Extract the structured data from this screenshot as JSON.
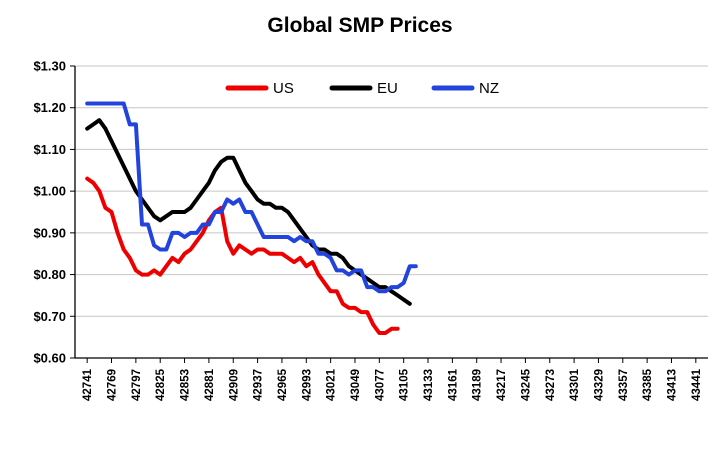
{
  "chart_data": {
    "type": "line",
    "title": "Global SMP Prices",
    "xlabel": "",
    "ylabel": "",
    "ylim": [
      0.6,
      1.3
    ],
    "grid": "horizontal",
    "legend_position": "top",
    "ytick_labels": [
      "$0.60",
      "$0.70",
      "$0.80",
      "$0.90",
      "$1.00",
      "$1.10",
      "$1.20",
      "$1.30"
    ],
    "ytick_values": [
      0.6,
      0.7,
      0.8,
      0.9,
      1.0,
      1.1,
      1.2,
      1.3
    ],
    "xtick_labels": [
      "42741",
      "42769",
      "42797",
      "42825",
      "42853",
      "42881",
      "42909",
      "42937",
      "42965",
      "42993",
      "43021",
      "43049",
      "43077",
      "43105",
      "43133",
      "43161",
      "43189",
      "43217",
      "43245",
      "43273",
      "43301",
      "43329",
      "43357",
      "43385",
      "43413",
      "43441"
    ],
    "x": [
      42741,
      42748,
      42755,
      42762,
      42769,
      42776,
      42783,
      42790,
      42797,
      42804,
      42811,
      42818,
      42825,
      42832,
      42839,
      42846,
      42853,
      42860,
      42867,
      42874,
      42881,
      42888,
      42895,
      42902,
      42909,
      42916,
      42923,
      42930,
      42937,
      42944,
      42951,
      42958,
      42965,
      42972,
      42979,
      42986,
      42993,
      43000,
      43007,
      43014,
      43021,
      43028,
      43035,
      43042,
      43049,
      43056,
      43063,
      43070,
      43077,
      43084,
      43091,
      43098,
      43105,
      43112,
      43119
    ],
    "series": [
      {
        "name": "US",
        "color": "#ee0000",
        "values": [
          1.03,
          1.02,
          1.0,
          0.96,
          0.95,
          0.9,
          0.86,
          0.84,
          0.81,
          0.8,
          0.8,
          0.81,
          0.8,
          0.82,
          0.84,
          0.83,
          0.85,
          0.86,
          0.88,
          0.9,
          0.93,
          0.95,
          0.96,
          0.88,
          0.85,
          0.87,
          0.86,
          0.85,
          0.86,
          0.86,
          0.85,
          0.85,
          0.85,
          0.84,
          0.83,
          0.84,
          0.82,
          0.83,
          0.8,
          0.78,
          0.76,
          0.76,
          0.73,
          0.72,
          0.72,
          0.71,
          0.71,
          0.68,
          0.66,
          0.66,
          0.67,
          0.67,
          null,
          null,
          null
        ]
      },
      {
        "name": "EU",
        "color": "#000000",
        "values": [
          1.15,
          1.16,
          1.17,
          1.15,
          1.12,
          1.09,
          1.06,
          1.03,
          1.0,
          0.98,
          0.96,
          0.94,
          0.93,
          0.94,
          0.95,
          0.95,
          0.95,
          0.96,
          0.98,
          1.0,
          1.02,
          1.05,
          1.07,
          1.08,
          1.08,
          1.05,
          1.02,
          1.0,
          0.98,
          0.97,
          0.97,
          0.96,
          0.96,
          0.95,
          0.93,
          0.91,
          0.89,
          0.87,
          0.86,
          0.86,
          0.85,
          0.85,
          0.84,
          0.82,
          0.81,
          0.8,
          0.79,
          0.78,
          0.77,
          0.77,
          0.76,
          0.75,
          0.74,
          0.73,
          null
        ]
      },
      {
        "name": "NZ",
        "color": "#2244dd",
        "values": [
          1.21,
          1.21,
          1.21,
          1.21,
          1.21,
          1.21,
          1.21,
          1.16,
          1.16,
          0.92,
          0.92,
          0.87,
          0.86,
          0.86,
          0.9,
          0.9,
          0.89,
          0.9,
          0.9,
          0.92,
          0.92,
          0.95,
          0.95,
          0.98,
          0.97,
          0.98,
          0.95,
          0.95,
          0.92,
          0.89,
          0.89,
          0.89,
          0.89,
          0.89,
          0.88,
          0.89,
          0.88,
          0.88,
          0.85,
          0.85,
          0.84,
          0.81,
          0.81,
          0.8,
          0.81,
          0.81,
          0.77,
          0.77,
          0.76,
          0.76,
          0.77,
          0.77,
          0.78,
          0.82,
          0.82
        ]
      }
    ]
  }
}
